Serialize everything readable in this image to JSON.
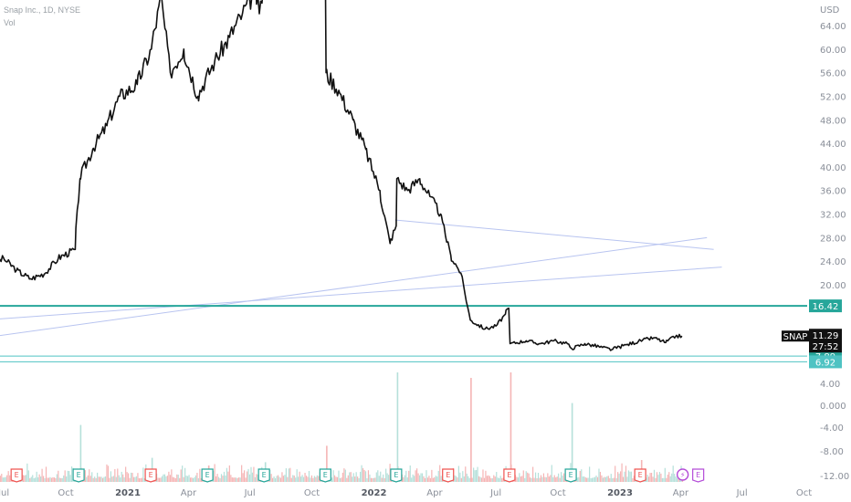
{
  "header": {
    "symbol_line": "Snap Inc., 1D, NYSE",
    "volume_label": "Vol",
    "currency": "USD"
  },
  "colors": {
    "price_line": "#111111",
    "level_line": "#26a69a",
    "thin_level": "#4fc3c3",
    "trend_line": "#b8c4f0",
    "vol_up": "#b5e0da",
    "vol_down": "#f5b5b5",
    "earn_up": "#26a69a",
    "earn_down": "#ef5350",
    "dividend": "#b44cd8"
  },
  "chart_data": {
    "type": "line",
    "title": "Snap Inc., 1D, NYSE",
    "price_axis": {
      "ticks": [
        "64.00",
        "60.00",
        "56.00",
        "52.00",
        "48.00",
        "44.00",
        "40.00",
        "36.00",
        "32.00",
        "28.00",
        "24.00",
        "20.00"
      ],
      "ylim": [
        8.5,
        67
      ]
    },
    "volume_axis": {
      "ticks": [
        "4.00",
        "0.000",
        "-4.00",
        "-8.00",
        "-12.00"
      ]
    },
    "x_ticks": [
      "Jul",
      "Oct",
      "2021",
      "Apr",
      "Jul",
      "Oct",
      "2022",
      "Apr",
      "Jul",
      "Oct",
      "2023",
      "Apr",
      "Jul",
      "Oct"
    ],
    "x_ticks_bold": [
      "2021",
      "2022",
      "2023"
    ],
    "series": [
      {
        "x": [
          "2020-06-15",
          "2020-07-01",
          "2020-07-20",
          "2020-08-10",
          "2020-09-01",
          "2020-09-20",
          "2020-10-15",
          "2020-10-22",
          "2020-11-10",
          "2020-12-01",
          "2020-12-20",
          "2021-01-15",
          "2021-02-05",
          "2021-02-20",
          "2021-03-05",
          "2021-03-25",
          "2021-04-15",
          "2021-05-10",
          "2021-06-01",
          "2021-06-20",
          "2021-07-10",
          "2021-07-15",
          "2021-07-25",
          "2021-08-01",
          "2021-08-20",
          "2021-09-20",
          "2021-10-15",
          "2021-10-21",
          "2021-10-22",
          "2021-11-10",
          "2021-12-01",
          "2021-12-20",
          "2022-01-10",
          "2022-01-25",
          "2022-02-03",
          "2022-02-04",
          "2022-02-20",
          "2022-03-10",
          "2022-03-25",
          "2022-04-10",
          "2022-04-25",
          "2022-05-10",
          "2022-05-24",
          "2022-06-15",
          "2022-07-01",
          "2022-07-15",
          "2022-07-20",
          "2022-07-22",
          "2022-08-15",
          "2022-09-05",
          "2022-09-25",
          "2022-10-15",
          "2022-10-21",
          "2022-11-10",
          "2022-12-01",
          "2022-12-20",
          "2023-01-10",
          "2023-02-01",
          "2023-02-20",
          "2023-03-10",
          "2023-03-25",
          "2023-04-03"
        ],
        "values": [
          23.5,
          24.5,
          22.5,
          21.0,
          22.0,
          24.5,
          26.0,
          38.0,
          43.0,
          47.0,
          52.0,
          54.0,
          60.0,
          69.0,
          56.0,
          60.0,
          52.0,
          58.0,
          62.0,
          66.0,
          70.0,
          66.0,
          73.0,
          77.0,
          75.0,
          74.0,
          73.0,
          74.0,
          56.0,
          53.0,
          48.0,
          43.0,
          36.0,
          27.0,
          30.0,
          38.0,
          36.0,
          38.0,
          35.0,
          32.0,
          25.0,
          22.0,
          14.0,
          12.5,
          13.0,
          15.0,
          16.0,
          10.0,
          10.5,
          10.0,
          10.5,
          10.0,
          9.2,
          10.0,
          9.5,
          9.0,
          9.8,
          10.5,
          11.0,
          10.2,
          11.3,
          11.29
        ]
      }
    ],
    "levels": [
      16.42,
      7.89,
      6.92
    ],
    "price_tags": [
      {
        "label": "16.42",
        "value": 16.42,
        "color": "#26a69a"
      },
      {
        "label": "7.89",
        "value": 7.89,
        "color": "#26a69a"
      },
      {
        "label": "6.92",
        "value": 6.92,
        "color": "#4fc3c3"
      }
    ],
    "current_tag": {
      "symbol": "SNAP",
      "price": "11.29",
      "countdown": "27:52"
    },
    "trend_lines": [
      {
        "from": [
          "2022-02-01",
          31.0
        ],
        "to": [
          "2023-05-20",
          26.0
        ]
      },
      {
        "from": [
          "2020-06-01",
          11.0
        ],
        "to": [
          "2023-05-10",
          28.0
        ]
      },
      {
        "from": [
          "2020-06-01",
          14.0
        ],
        "to": [
          "2023-06-01",
          23.0
        ]
      }
    ],
    "events": [
      {
        "date": "2020-07-20",
        "type": "E",
        "kind": "down"
      },
      {
        "date": "2020-10-20",
        "type": "E",
        "kind": "up"
      },
      {
        "date": "2021-02-04",
        "type": "E",
        "kind": "down"
      },
      {
        "date": "2021-04-29",
        "type": "E",
        "kind": "up"
      },
      {
        "date": "2021-07-22",
        "type": "E",
        "kind": "up"
      },
      {
        "date": "2021-10-21",
        "type": "E",
        "kind": "up"
      },
      {
        "date": "2022-02-03",
        "type": "E",
        "kind": "up"
      },
      {
        "date": "2022-04-21",
        "type": "E",
        "kind": "down"
      },
      {
        "date": "2022-07-21",
        "type": "E",
        "kind": "down"
      },
      {
        "date": "2022-10-20",
        "type": "E",
        "kind": "up"
      },
      {
        "date": "2023-01-31",
        "type": "E",
        "kind": "down"
      },
      {
        "date": "2023-04-04",
        "type": "split",
        "kind": "split"
      },
      {
        "date": "2023-04-27",
        "type": "E",
        "kind": "future"
      }
    ],
    "volume_spikes": [
      {
        "date": "2020-10-22",
        "value": 0.52,
        "dir": "up"
      },
      {
        "date": "2021-02-05",
        "value": 0.22,
        "dir": "up"
      },
      {
        "date": "2021-04-30",
        "value": 0.15,
        "dir": "down"
      },
      {
        "date": "2021-07-23",
        "value": 0.18,
        "dir": "up"
      },
      {
        "date": "2021-10-22",
        "value": 0.33,
        "dir": "down"
      },
      {
        "date": "2022-02-04",
        "value": 1.0,
        "dir": "up"
      },
      {
        "date": "2022-05-24",
        "value": 0.95,
        "dir": "down"
      },
      {
        "date": "2022-07-22",
        "value": 1.0,
        "dir": "down"
      },
      {
        "date": "2022-10-21",
        "value": 0.72,
        "dir": "up"
      },
      {
        "date": "2023-02-01",
        "value": 0.2,
        "dir": "down"
      }
    ]
  }
}
